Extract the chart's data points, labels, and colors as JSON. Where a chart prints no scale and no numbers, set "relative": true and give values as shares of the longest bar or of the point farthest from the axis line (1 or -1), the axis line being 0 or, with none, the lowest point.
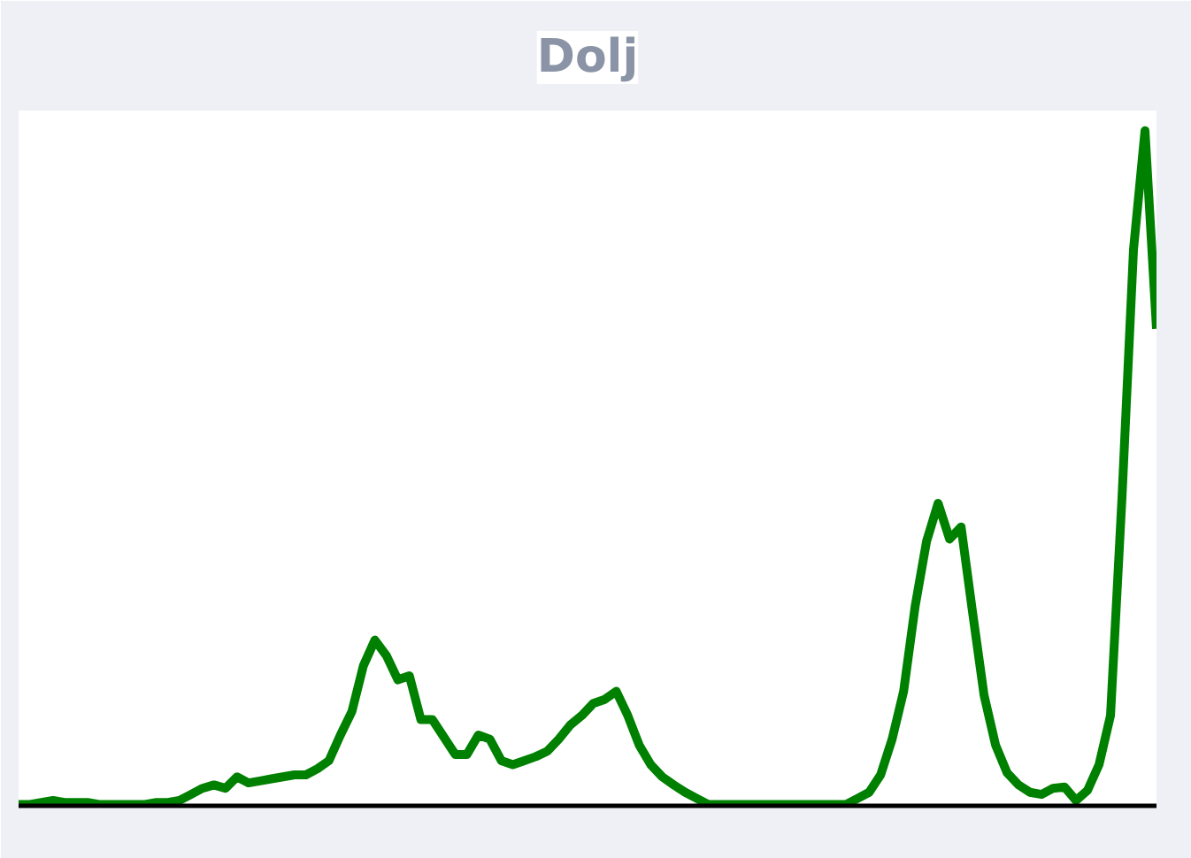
{
  "chart_data": {
    "type": "line",
    "title": "Dolj",
    "relative": true,
    "categories": [
      null,
      null,
      null,
      null,
      null,
      null,
      null,
      null,
      null,
      null,
      null,
      null,
      null,
      null,
      null,
      null,
      null,
      null,
      null,
      null,
      null,
      null,
      null,
      null,
      null,
      null,
      null,
      null,
      null,
      null,
      null,
      null,
      null,
      null,
      null,
      null,
      null,
      null,
      null,
      null,
      null,
      null,
      null,
      null,
      null,
      null,
      null,
      null,
      null,
      null,
      null,
      null,
      null,
      null,
      null,
      null,
      null,
      null,
      null,
      null,
      null,
      null,
      null,
      null,
      null,
      null,
      null,
      null,
      null,
      null,
      null,
      null,
      null,
      null,
      null,
      null,
      null,
      null,
      null,
      null,
      null,
      null,
      null,
      null,
      null,
      null,
      null,
      null,
      null,
      null,
      null,
      null,
      null,
      null,
      null,
      null,
      null,
      null,
      null,
      null
    ],
    "series": [
      {
        "color": "#008000",
        "values": [
          0,
          0,
          0.003,
          0.006,
          0.003,
          0.003,
          0.003,
          0,
          0,
          0,
          0,
          0,
          0.003,
          0.003,
          0.006,
          0.015,
          0.024,
          0.029,
          0.024,
          0.041,
          0.032,
          0.035,
          0.038,
          0.041,
          0.044,
          0.044,
          0.053,
          0.065,
          0.103,
          0.138,
          0.206,
          0.244,
          0.221,
          0.185,
          0.191,
          0.126,
          0.126,
          0.1,
          0.074,
          0.074,
          0.103,
          0.097,
          0.065,
          0.059,
          0.065,
          0.071,
          0.079,
          0.097,
          0.118,
          0.132,
          0.15,
          0.156,
          0.168,
          0.132,
          0.088,
          0.059,
          0.041,
          0.029,
          0.018,
          0.009,
          0,
          0,
          0,
          0,
          0,
          0,
          0,
          0,
          0,
          0,
          0,
          0,
          0,
          0.009,
          0.018,
          0.044,
          0.097,
          0.168,
          0.294,
          0.391,
          0.447,
          0.394,
          0.412,
          0.285,
          0.162,
          0.088,
          0.047,
          0.029,
          0.018,
          0.015,
          0.024,
          0.026,
          0.006,
          0.021,
          0.059,
          0.132,
          0.456,
          0.824,
          1,
          0.706
        ]
      }
    ]
  }
}
